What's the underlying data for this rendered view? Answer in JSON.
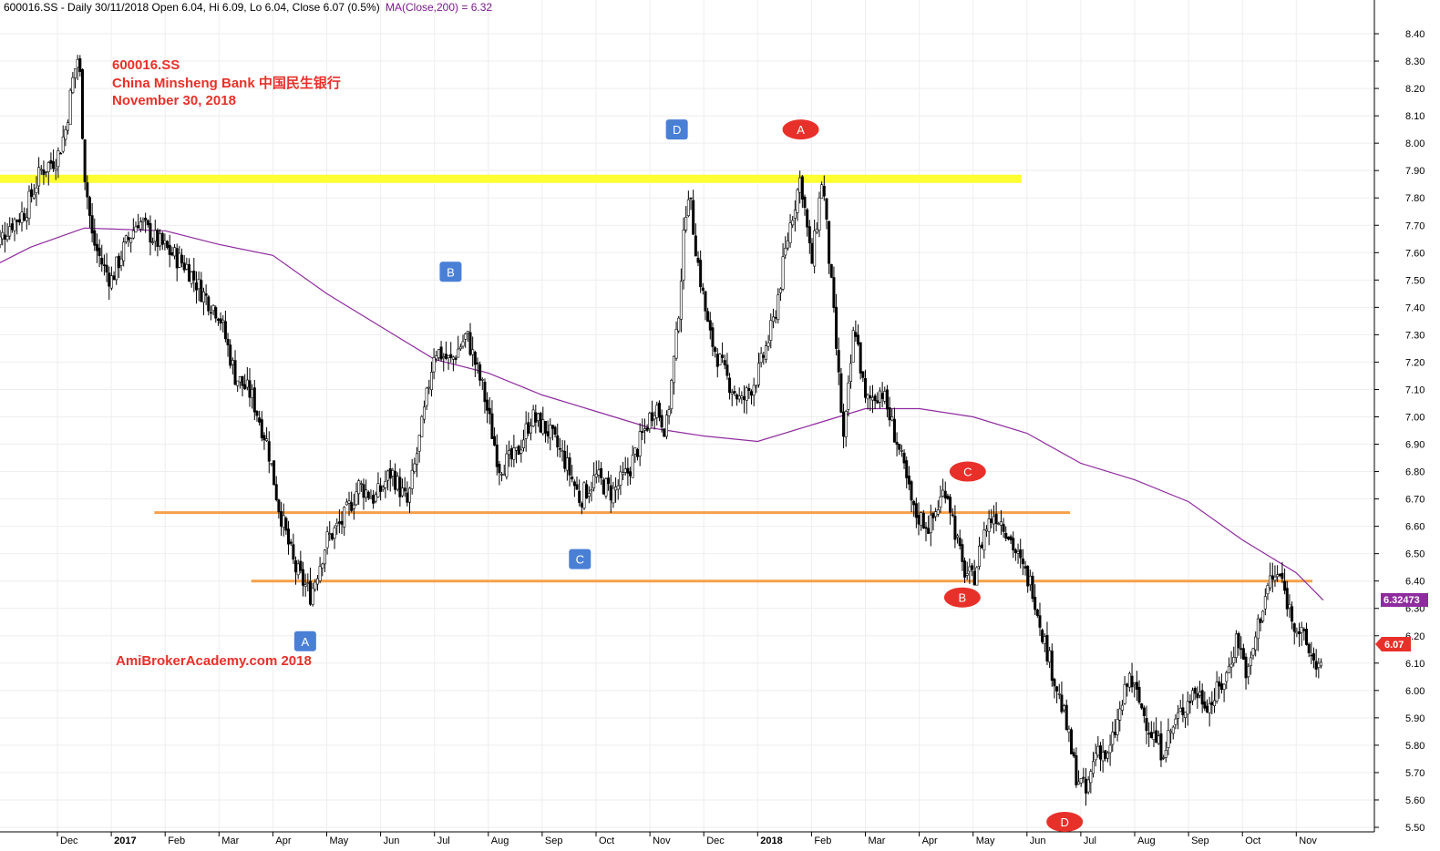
{
  "header": {
    "text": "600016.SS - Daily 30/11/2018 Open 6.04, Hi 6.09, Lo 6.04, Close 6.07 (0.5%)",
    "ma_text": "MA(Close,200) = 6.32"
  },
  "annotations": {
    "title_lines": [
      "600016.SS",
      "China Minsheng Bank 中国民生银行",
      "November 30, 2018"
    ],
    "site": "AmiBrokerAcademy.com  2018"
  },
  "price_tags": {
    "ma": "6.32473",
    "close": "6.07"
  },
  "colors": {
    "candle": "#000000",
    "ma_line": "#8e2b9e",
    "resistance": "#ffff33",
    "support": "#f5a04a",
    "badge_square": "#4a7fd6",
    "badge_round": "#e8302a",
    "title_red": "#e8302a"
  },
  "chart_data": {
    "type": "line",
    "title": "600016.SS",
    "ylim": [
      5.5,
      8.45
    ],
    "y_ticks": [
      "5.50",
      "5.60",
      "5.70",
      "5.80",
      "5.90",
      "6.00",
      "6.10",
      "6.20",
      "6.30",
      "6.40",
      "6.50",
      "6.60",
      "6.70",
      "6.80",
      "6.90",
      "7.00",
      "7.10",
      "7.20",
      "7.30",
      "7.40",
      "7.50",
      "7.60",
      "7.70",
      "7.80",
      "7.90",
      "8.00",
      "8.10",
      "8.20",
      "8.30",
      "8.40"
    ],
    "x_labels": [
      {
        "label": "Dec",
        "bold": false
      },
      {
        "label": "2017",
        "bold": true
      },
      {
        "label": "Feb",
        "bold": false
      },
      {
        "label": "Mar",
        "bold": false
      },
      {
        "label": "Apr",
        "bold": false
      },
      {
        "label": "May",
        "bold": false
      },
      {
        "label": "Jun",
        "bold": false
      },
      {
        "label": "Jul",
        "bold": false
      },
      {
        "label": "Aug",
        "bold": false
      },
      {
        "label": "Sep",
        "bold": false
      },
      {
        "label": "Oct",
        "bold": false
      },
      {
        "label": "Nov",
        "bold": false
      },
      {
        "label": "Dec",
        "bold": false
      },
      {
        "label": "2018",
        "bold": true
      },
      {
        "label": "Feb",
        "bold": false
      },
      {
        "label": "Mar",
        "bold": false
      },
      {
        "label": "Apr",
        "bold": false
      },
      {
        "label": "May",
        "bold": false
      },
      {
        "label": "Jun",
        "bold": false
      },
      {
        "label": "Jul",
        "bold": false
      },
      {
        "label": "Aug",
        "bold": false
      },
      {
        "label": "Sep",
        "bold": false
      },
      {
        "label": "Oct",
        "bold": false
      },
      {
        "label": "Nov",
        "bold": false
      }
    ],
    "price_series": {
      "name": "600016.SS",
      "months": [
        "Dec",
        "2017",
        "Feb",
        "Mar",
        "Apr",
        "May",
        "Jun",
        "Jul",
        "Aug",
        "Sep",
        "Oct",
        "Nov",
        "Dec",
        "2018",
        "Feb",
        "Mar",
        "Apr",
        "May",
        "Jun",
        "Jul",
        "Aug",
        "Sep",
        "Oct",
        "Nov"
      ],
      "path": [
        {
          "m": -1.2,
          "p": 7.6
        },
        {
          "m": -0.9,
          "p": 7.7
        },
        {
          "m": -0.6,
          "p": 7.75
        },
        {
          "m": -0.3,
          "p": 7.9
        },
        {
          "m": 0.0,
          "p": 7.95
        },
        {
          "m": 0.15,
          "p": 8.05
        },
        {
          "m": 0.3,
          "p": 8.25
        },
        {
          "m": 0.4,
          "p": 8.33
        },
        {
          "m": 0.5,
          "p": 7.9
        },
        {
          "m": 0.65,
          "p": 7.65
        },
        {
          "m": 0.85,
          "p": 7.55
        },
        {
          "m": 1.0,
          "p": 7.5
        },
        {
          "m": 1.2,
          "p": 7.6
        },
        {
          "m": 1.5,
          "p": 7.72
        },
        {
          "m": 1.8,
          "p": 7.65
        },
        {
          "m": 2.1,
          "p": 7.6
        },
        {
          "m": 2.4,
          "p": 7.55
        },
        {
          "m": 2.7,
          "p": 7.45
        },
        {
          "m": 3.0,
          "p": 7.38
        },
        {
          "m": 3.3,
          "p": 7.15
        },
        {
          "m": 3.6,
          "p": 7.08
        },
        {
          "m": 3.9,
          "p": 6.9
        },
        {
          "m": 4.1,
          "p": 6.68
        },
        {
          "m": 4.4,
          "p": 6.45
        },
        {
          "m": 4.7,
          "p": 6.35
        },
        {
          "m": 5.0,
          "p": 6.55
        },
        {
          "m": 5.3,
          "p": 6.62
        },
        {
          "m": 5.6,
          "p": 6.75
        },
        {
          "m": 5.9,
          "p": 6.7
        },
        {
          "m": 6.2,
          "p": 6.8
        },
        {
          "m": 6.5,
          "p": 6.68
        },
        {
          "m": 6.8,
          "p": 7.0
        },
        {
          "m": 7.0,
          "p": 7.25
        },
        {
          "m": 7.3,
          "p": 7.2
        },
        {
          "m": 7.6,
          "p": 7.3
        },
        {
          "m": 7.9,
          "p": 7.1
        },
        {
          "m": 8.2,
          "p": 6.82
        },
        {
          "m": 8.5,
          "p": 6.85
        },
        {
          "m": 8.8,
          "p": 7.0
        },
        {
          "m": 9.1,
          "p": 6.95
        },
        {
          "m": 9.4,
          "p": 6.85
        },
        {
          "m": 9.7,
          "p": 6.7
        },
        {
          "m": 10.0,
          "p": 6.78
        },
        {
          "m": 10.3,
          "p": 6.72
        },
        {
          "m": 10.6,
          "p": 6.8
        },
        {
          "m": 10.9,
          "p": 6.95
        },
        {
          "m": 11.1,
          "p": 7.05
        },
        {
          "m": 11.3,
          "p": 6.95
        },
        {
          "m": 11.5,
          "p": 7.3
        },
        {
          "m": 11.7,
          "p": 7.85
        },
        {
          "m": 11.9,
          "p": 7.55
        },
        {
          "m": 12.1,
          "p": 7.3
        },
        {
          "m": 12.4,
          "p": 7.15
        },
        {
          "m": 12.7,
          "p": 7.05
        },
        {
          "m": 13.0,
          "p": 7.15
        },
        {
          "m": 13.3,
          "p": 7.35
        },
        {
          "m": 13.6,
          "p": 7.7
        },
        {
          "m": 13.8,
          "p": 7.88
        },
        {
          "m": 14.0,
          "p": 7.55
        },
        {
          "m": 14.2,
          "p": 7.88
        },
        {
          "m": 14.4,
          "p": 7.4
        },
        {
          "m": 14.6,
          "p": 6.9
        },
        {
          "m": 14.8,
          "p": 7.35
        },
        {
          "m": 15.0,
          "p": 7.05
        },
        {
          "m": 15.3,
          "p": 7.1
        },
        {
          "m": 15.6,
          "p": 6.9
        },
        {
          "m": 15.9,
          "p": 6.65
        },
        {
          "m": 16.2,
          "p": 6.6
        },
        {
          "m": 16.5,
          "p": 6.75
        },
        {
          "m": 16.8,
          "p": 6.45
        },
        {
          "m": 17.0,
          "p": 6.4
        },
        {
          "m": 17.2,
          "p": 6.58
        },
        {
          "m": 17.4,
          "p": 6.65
        },
        {
          "m": 17.6,
          "p": 6.6
        },
        {
          "m": 17.9,
          "p": 6.45
        },
        {
          "m": 18.1,
          "p": 6.38
        },
        {
          "m": 18.3,
          "p": 6.2
        },
        {
          "m": 18.5,
          "p": 6.05
        },
        {
          "m": 18.7,
          "p": 5.9
        },
        {
          "m": 18.9,
          "p": 5.7
        },
        {
          "m": 19.1,
          "p": 5.62
        },
        {
          "m": 19.3,
          "p": 5.8
        },
        {
          "m": 19.5,
          "p": 5.75
        },
        {
          "m": 19.7,
          "p": 5.9
        },
        {
          "m": 19.9,
          "p": 6.05
        },
        {
          "m": 20.1,
          "p": 5.95
        },
        {
          "m": 20.3,
          "p": 5.85
        },
        {
          "m": 20.5,
          "p": 5.78
        },
        {
          "m": 20.8,
          "p": 5.9
        },
        {
          "m": 21.1,
          "p": 6.0
        },
        {
          "m": 21.4,
          "p": 5.95
        },
        {
          "m": 21.7,
          "p": 6.05
        },
        {
          "m": 21.9,
          "p": 6.2
        },
        {
          "m": 22.1,
          "p": 6.05
        },
        {
          "m": 22.3,
          "p": 6.25
        },
        {
          "m": 22.5,
          "p": 6.4
        },
        {
          "m": 22.7,
          "p": 6.42
        },
        {
          "m": 22.9,
          "p": 6.28
        },
        {
          "m": 23.1,
          "p": 6.2
        },
        {
          "m": 23.3,
          "p": 6.12
        },
        {
          "m": 23.5,
          "p": 6.07
        }
      ]
    },
    "ma_series": {
      "name": "MA(Close,200)",
      "path": [
        {
          "m": -1.2,
          "p": 7.55
        },
        {
          "m": -0.5,
          "p": 7.62
        },
        {
          "m": 0.5,
          "p": 7.69
        },
        {
          "m": 2.0,
          "p": 7.68
        },
        {
          "m": 3.0,
          "p": 7.63
        },
        {
          "m": 4.0,
          "p": 7.59
        },
        {
          "m": 5.0,
          "p": 7.45
        },
        {
          "m": 6.0,
          "p": 7.33
        },
        {
          "m": 7.0,
          "p": 7.21
        },
        {
          "m": 8.0,
          "p": 7.16
        },
        {
          "m": 9.0,
          "p": 7.08
        },
        {
          "m": 10.0,
          "p": 7.02
        },
        {
          "m": 11.0,
          "p": 6.96
        },
        {
          "m": 12.0,
          "p": 6.93
        },
        {
          "m": 13.0,
          "p": 6.91
        },
        {
          "m": 14.0,
          "p": 6.97
        },
        {
          "m": 15.0,
          "p": 7.03
        },
        {
          "m": 16.0,
          "p": 7.03
        },
        {
          "m": 17.0,
          "p": 7.0
        },
        {
          "m": 18.0,
          "p": 6.94
        },
        {
          "m": 19.0,
          "p": 6.83
        },
        {
          "m": 20.0,
          "p": 6.77
        },
        {
          "m": 21.0,
          "p": 6.69
        },
        {
          "m": 22.0,
          "p": 6.55
        },
        {
          "m": 23.0,
          "p": 6.43
        },
        {
          "m": 23.5,
          "p": 6.33
        }
      ]
    },
    "horizontal_lines": [
      {
        "name": "resistance",
        "price": 7.87,
        "from": -1.5,
        "to": 17.9,
        "color": "#ffff33"
      },
      {
        "name": "support-upper",
        "price": 6.65,
        "from": 1.8,
        "to": 18.8,
        "color": "#f5a04a"
      },
      {
        "name": "support-lower",
        "price": 6.4,
        "from": 3.6,
        "to": 23.3,
        "color": "#f5a04a"
      }
    ],
    "badges": [
      {
        "label": "D",
        "shape": "square",
        "m": 11.5,
        "p": 8.05
      },
      {
        "label": "B",
        "shape": "square",
        "m": 7.3,
        "p": 7.53
      },
      {
        "label": "C",
        "shape": "square",
        "m": 9.7,
        "p": 6.48
      },
      {
        "label": "A",
        "shape": "square",
        "m": 4.6,
        "p": 6.18
      },
      {
        "label": "A",
        "shape": "round",
        "m": 13.8,
        "p": 8.05
      },
      {
        "label": "C",
        "shape": "round",
        "m": 16.9,
        "p": 6.8
      },
      {
        "label": "B",
        "shape": "round",
        "m": 16.8,
        "p": 6.34
      },
      {
        "label": "D",
        "shape": "round",
        "m": 18.7,
        "p": 5.52
      }
    ]
  }
}
